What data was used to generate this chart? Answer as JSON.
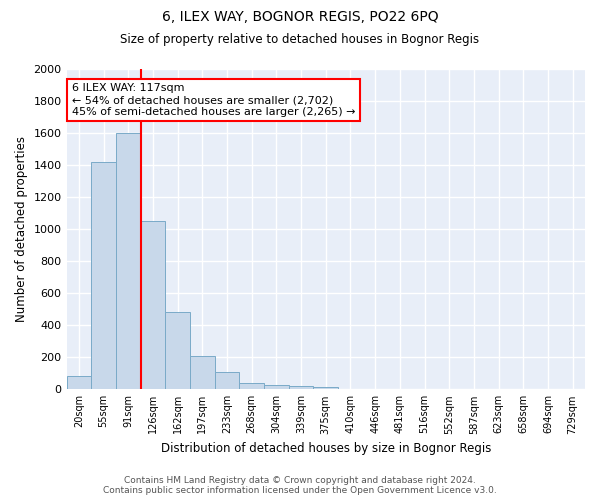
{
  "title": "6, ILEX WAY, BOGNOR REGIS, PO22 6PQ",
  "subtitle": "Size of property relative to detached houses in Bognor Regis",
  "xlabel": "Distribution of detached houses by size in Bognor Regis",
  "ylabel": "Number of detached properties",
  "bar_color": "#c8d8ea",
  "bar_edge_color": "#7aaac8",
  "background_color": "#e8eef8",
  "grid_color": "white",
  "categories": [
    "20sqm",
    "55sqm",
    "91sqm",
    "126sqm",
    "162sqm",
    "197sqm",
    "233sqm",
    "268sqm",
    "304sqm",
    "339sqm",
    "375sqm",
    "410sqm",
    "446sqm",
    "481sqm",
    "516sqm",
    "552sqm",
    "587sqm",
    "623sqm",
    "658sqm",
    "694sqm",
    "729sqm"
  ],
  "values": [
    80,
    1420,
    1600,
    1050,
    480,
    205,
    105,
    40,
    25,
    20,
    15,
    0,
    0,
    0,
    0,
    0,
    0,
    0,
    0,
    0,
    0
  ],
  "ylim": [
    0,
    2000
  ],
  "yticks": [
    0,
    200,
    400,
    600,
    800,
    1000,
    1200,
    1400,
    1600,
    1800,
    2000
  ],
  "red_line_x": 2.5,
  "annotation_title": "6 ILEX WAY: 117sqm",
  "annotation_line1": "← 54% of detached houses are smaller (2,702)",
  "annotation_line2": "45% of semi-detached houses are larger (2,265) →",
  "annotation_box_color": "white",
  "annotation_border_color": "red",
  "red_line_color": "red",
  "footer1": "Contains HM Land Registry data © Crown copyright and database right 2024.",
  "footer2": "Contains public sector information licensed under the Open Government Licence v3.0."
}
